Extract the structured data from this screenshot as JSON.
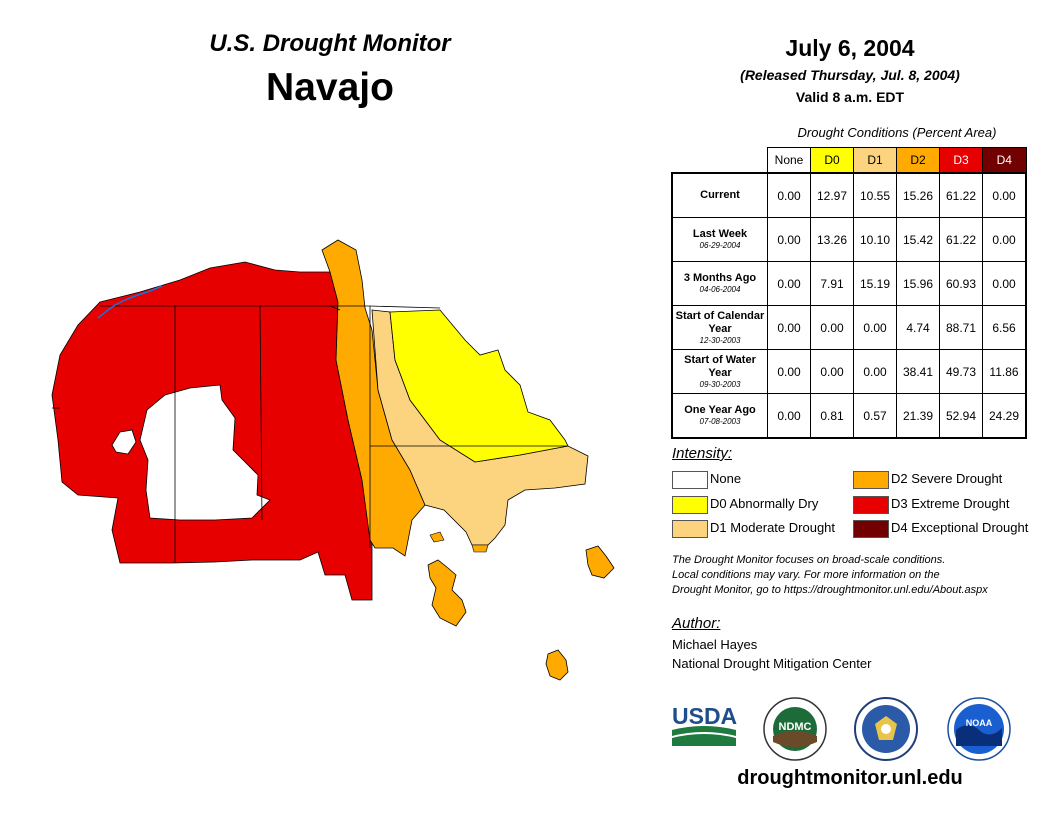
{
  "header": {
    "title": "U.S. Drought Monitor",
    "region": "Navajo",
    "date": "July 6, 2004",
    "released": "(Released Thursday, Jul. 8, 2004)",
    "valid": "Valid 8 a.m. EDT"
  },
  "table": {
    "caption": "Drought Conditions (Percent Area)",
    "columns": [
      "None",
      "D0",
      "D1",
      "D2",
      "D3",
      "D4"
    ],
    "column_colors": [
      "#ffffff",
      "#ffff00",
      "#fcd37f",
      "#ffaa00",
      "#e60000",
      "#730000"
    ],
    "rows": [
      {
        "label": "Current",
        "date": "",
        "values": [
          "0.00",
          "12.97",
          "10.55",
          "15.26",
          "61.22",
          "0.00"
        ]
      },
      {
        "label": "Last Week",
        "date": "06-29-2004",
        "values": [
          "0.00",
          "13.26",
          "10.10",
          "15.42",
          "61.22",
          "0.00"
        ]
      },
      {
        "label": "3 Months Ago",
        "date": "04-06-2004",
        "values": [
          "0.00",
          "7.91",
          "15.19",
          "15.96",
          "60.93",
          "0.00"
        ]
      },
      {
        "label": "Start of Calendar Year",
        "date": "12-30-2003",
        "values": [
          "0.00",
          "0.00",
          "0.00",
          "4.74",
          "88.71",
          "6.56"
        ]
      },
      {
        "label": "Start of Water Year",
        "date": "09-30-2003",
        "values": [
          "0.00",
          "0.00",
          "0.00",
          "38.41",
          "49.73",
          "11.86"
        ]
      },
      {
        "label": "One Year Ago",
        "date": "07-08-2003",
        "values": [
          "0.00",
          "0.81",
          "0.57",
          "21.39",
          "52.94",
          "24.29"
        ]
      }
    ]
  },
  "legend": {
    "title": "Intensity:",
    "items": [
      {
        "label": "None",
        "color": "#ffffff"
      },
      {
        "label": "D0 Abnormally Dry",
        "color": "#ffff00"
      },
      {
        "label": "D1 Moderate Drought",
        "color": "#fcd37f"
      },
      {
        "label": "D2 Severe Drought",
        "color": "#ffaa00"
      },
      {
        "label": "D3 Extreme Drought",
        "color": "#e60000"
      },
      {
        "label": "D4 Exceptional Drought",
        "color": "#730000"
      }
    ]
  },
  "note": {
    "line1": "The Drought Monitor focuses on broad-scale conditions.",
    "line2": "Local conditions may vary. For more information on the",
    "line3": "Drought Monitor, go to https://droughtmonitor.unl.edu/About.aspx"
  },
  "author": {
    "title": "Author:",
    "name": "Michael Hayes",
    "org": "National Drought Mitigation Center"
  },
  "logos": {
    "usda": "USDA",
    "ndmc": "NDMC",
    "noaa": "NOAA"
  },
  "footer": {
    "url": "droughtmonitor.unl.edu"
  }
}
